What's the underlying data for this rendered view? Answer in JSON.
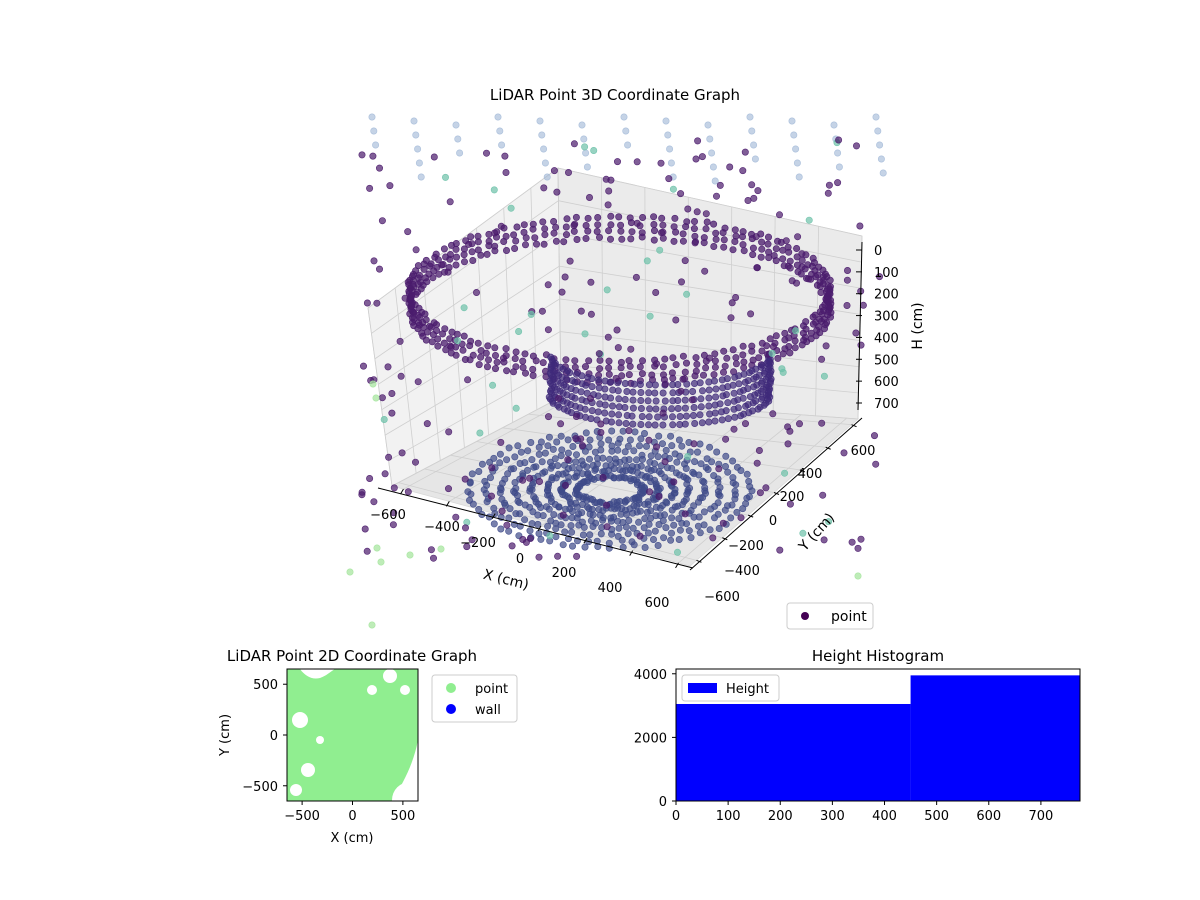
{
  "chart_data": [
    {
      "type": "scatter",
      "projection": "3d",
      "title": "LiDAR Point 3D Coordinate Graph",
      "xlabel": "X (cm)",
      "ylabel": "Y (cm)",
      "zlabel": "H (cm)",
      "x_ticks": [
        -600,
        -400,
        -200,
        0,
        200,
        400,
        600
      ],
      "y_ticks": [
        -600,
        -400,
        -200,
        0,
        200,
        400,
        600
      ],
      "z_ticks": [
        0,
        100,
        200,
        300,
        400,
        500,
        600,
        700
      ],
      "xlim": [
        -650,
        650
      ],
      "ylim": [
        -650,
        650
      ],
      "zlim": [
        750,
        0
      ],
      "z_inverted": true,
      "colormap": "viridis",
      "legend": {
        "location": "lower-right",
        "entries": [
          {
            "label": "point",
            "color": "#440154"
          }
        ]
      },
      "description_series": [
        {
          "name": "point",
          "pattern": "ring walls and dome around scanner",
          "color": "#440154"
        }
      ]
    },
    {
      "type": "scatter",
      "title": "LiDAR Point 2D Coordinate Graph",
      "xlabel": "X (cm)",
      "ylabel": "Y (cm)",
      "xlim": [
        -650,
        650
      ],
      "ylim": [
        -650,
        650
      ],
      "x_ticks": [
        -500,
        0,
        500
      ],
      "y_ticks": [
        -500,
        0,
        500
      ],
      "legend": {
        "location": "outside-right",
        "entries": [
          {
            "label": "point",
            "color": "#90ee90"
          },
          {
            "label": "wall",
            "color": "#0000ff"
          }
        ]
      },
      "series": [
        {
          "name": "point",
          "color": "#90ee90",
          "fill": "mostly full area"
        },
        {
          "name": "wall",
          "color": "#0000ff",
          "count": 0
        }
      ]
    },
    {
      "type": "bar",
      "subtype": "histogram",
      "title": "Height Histogram",
      "xlim": [
        0,
        775
      ],
      "ylim": [
        0,
        4150
      ],
      "x_ticks": [
        0,
        100,
        200,
        300,
        400,
        500,
        600,
        700
      ],
      "y_ticks": [
        0,
        2000,
        4000
      ],
      "series": [
        {
          "name": "Height",
          "color": "#0000ff",
          "bins": [
            {
              "from": 0,
              "to": 450,
              "count": 3050
            },
            {
              "from": 450,
              "to": 775,
              "count": 3950
            }
          ]
        }
      ],
      "legend": {
        "location": "upper-left",
        "entries": [
          {
            "label": "Height",
            "color": "#0000ff"
          }
        ]
      }
    }
  ]
}
